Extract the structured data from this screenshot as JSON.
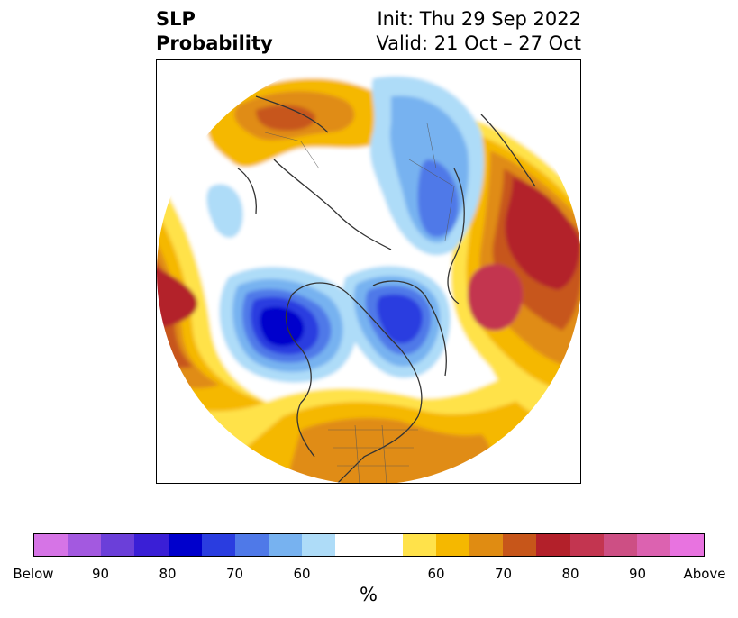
{
  "title": {
    "left_line1": "SLP",
    "left_line2": "Probability",
    "right_line1": "Init: Thu 29 Sep 2022",
    "right_line2": "Valid: 21 Oct – 27 Oct"
  },
  "colorbar": {
    "colors": [
      "#d674e6",
      "#a359e0",
      "#6b3fd9",
      "#3a1fd6",
      "#0000cc",
      "#2a3de0",
      "#4f79e8",
      "#77b2f0",
      "#aedcf8",
      "#ffffff",
      "#ffffff",
      "#ffe24a",
      "#f5b800",
      "#e08c12",
      "#c7561a",
      "#b3202a",
      "#c33550",
      "#cd4f84",
      "#dc62b0",
      "#e873e0"
    ],
    "labels": [
      {
        "text": "Below",
        "index": 0
      },
      {
        "text": "90",
        "index": 2
      },
      {
        "text": "80",
        "index": 4
      },
      {
        "text": "70",
        "index": 6
      },
      {
        "text": "60",
        "index": 8
      },
      {
        "text": "60",
        "index": 12
      },
      {
        "text": "70",
        "index": 14
      },
      {
        "text": "80",
        "index": 16
      },
      {
        "text": "90",
        "index": 18
      },
      {
        "text": "Above",
        "index": 20
      }
    ],
    "unit": "%"
  }
}
